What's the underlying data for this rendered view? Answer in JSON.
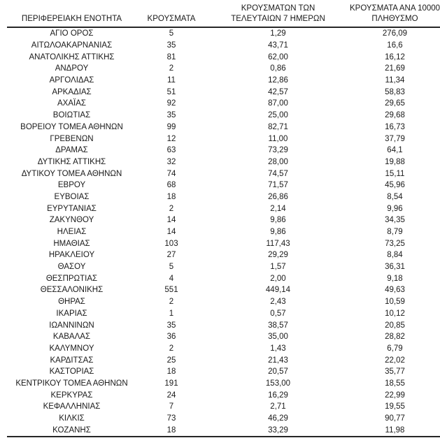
{
  "colors": {
    "text": "#1a1a1a",
    "border": "#262626",
    "background": "#ffffff"
  },
  "header": {
    "col1": "ΠΕΡΙΦΕΡΕΙΑΚΗ ΕΝΟΤΗΤΑ",
    "col2": "ΚΡΟΥΣΜΑΤΑ",
    "col3_line1": "ΚΡΟΥΣΜΑΤΩΝ ΤΩΝ",
    "col3_line2": "ΤΕΛΕΥΤΑΙΩΝ 7 ΗΜΕΡΩΝ",
    "col4_line1": "ΚΡΟΥΣΜΑΤΑ ΑΝΑ 100000",
    "col4_line2": "ΠΛΗΘΥΣΜΟ"
  },
  "chart_data": {
    "type": "table",
    "title": "",
    "columns": [
      "ΠΕΡΙΦΕΡΕΙΑΚΗ ΕΝΟΤΗΤΑ",
      "ΚΡΟΥΣΜΑΤΑ",
      "ΚΡΟΥΣΜΑΤΩΝ ΤΩΝ ΤΕΛΕΥΤΑΙΩΝ 7 ΗΜΕΡΩΝ",
      "ΚΡΟΥΣΜΑΤΑ ΑΝΑ 100000 ΠΛΗΘΥΣΜΟ"
    ],
    "rows": [
      [
        "ΑΓΙΟ ΟΡΟΣ",
        "5",
        "1,29",
        "276,09"
      ],
      [
        "ΑΙΤΩΛΟΑΚΑΡΝΑΝΙΑΣ",
        "35",
        "43,71",
        "16,6"
      ],
      [
        "ΑΝΑΤΟΛΙΚΗΣ ΑΤΤΙΚΗΣ",
        "81",
        "62,00",
        "16,12"
      ],
      [
        "ΑΝΔΡΟΥ",
        "2",
        "0,86",
        "21,69"
      ],
      [
        "ΑΡΓΟΛΙΔΑΣ",
        "11",
        "12,86",
        "11,34"
      ],
      [
        "ΑΡΚΑΔΙΑΣ",
        "51",
        "42,57",
        "58,83"
      ],
      [
        "ΑΧΑΪΑΣ",
        "92",
        "87,00",
        "29,65"
      ],
      [
        "ΒΟΙΩΤΙΑΣ",
        "35",
        "25,00",
        "29,68"
      ],
      [
        "ΒΟΡΕΙΟΥ ΤΟΜΕΑ ΑΘΗΝΩΝ",
        "99",
        "82,71",
        "16,73"
      ],
      [
        "ΓΡΕΒΕΝΩΝ",
        "12",
        "11,00",
        "37,79"
      ],
      [
        "ΔΡΑΜΑΣ",
        "63",
        "73,29",
        "64,1"
      ],
      [
        "ΔΥΤΙΚΗΣ ΑΤΤΙΚΗΣ",
        "32",
        "28,00",
        "19,88"
      ],
      [
        "ΔΥΤΙΚΟΥ ΤΟΜΕΑ ΑΘΗΝΩΝ",
        "74",
        "74,57",
        "15,11"
      ],
      [
        "ΕΒΡΟΥ",
        "68",
        "71,57",
        "45,96"
      ],
      [
        "ΕΥΒΟΙΑΣ",
        "18",
        "26,86",
        "8,54"
      ],
      [
        "ΕΥΡΥΤΑΝΙΑΣ",
        "2",
        "2,14",
        "9,96"
      ],
      [
        "ΖΑΚΥΝΘΟΥ",
        "14",
        "9,86",
        "34,35"
      ],
      [
        "ΗΛΕΙΑΣ",
        "14",
        "9,86",
        "8,79"
      ],
      [
        "ΗΜΑΘΙΑΣ",
        "103",
        "117,43",
        "73,25"
      ],
      [
        "ΗΡΑΚΛΕΙΟΥ",
        "27",
        "29,29",
        "8,84"
      ],
      [
        "ΘΑΣΟΥ",
        "5",
        "1,57",
        "36,31"
      ],
      [
        "ΘΕΣΠΡΩΤΙΑΣ",
        "4",
        "2,00",
        "9,18"
      ],
      [
        "ΘΕΣΣΑΛΟΝΙΚΗΣ",
        "551",
        "449,14",
        "49,63"
      ],
      [
        "ΘΗΡΑΣ",
        "2",
        "2,43",
        "10,59"
      ],
      [
        "ΙΚΑΡΙΑΣ",
        "1",
        "0,57",
        "10,12"
      ],
      [
        "ΙΩΑΝΝΙΝΩΝ",
        "35",
        "38,57",
        "20,85"
      ],
      [
        "ΚΑΒΑΛΑΣ",
        "36",
        "35,00",
        "28,82"
      ],
      [
        "ΚΑΛΥΜΝΟΥ",
        "2",
        "1,43",
        "6,79"
      ],
      [
        "ΚΑΡΔΙΤΣΑΣ",
        "25",
        "21,43",
        "22,02"
      ],
      [
        "ΚΑΣΤΟΡΙΑΣ",
        "18",
        "20,57",
        "35,77"
      ],
      [
        "ΚΕΝΤΡΙΚΟΥ ΤΟΜΕΑ ΑΘΗΝΩΝ",
        "191",
        "153,00",
        "18,55"
      ],
      [
        "ΚΕΡΚΥΡΑΣ",
        "24",
        "16,29",
        "22,99"
      ],
      [
        "ΚΕΦΑΛΛΗΝΙΑΣ",
        "7",
        "2,71",
        "19,55"
      ],
      [
        "ΚΙΛΚΙΣ",
        "73",
        "46,29",
        "90,77"
      ],
      [
        "ΚΟΖΑΝΗΣ",
        "18",
        "33,29",
        "11,98"
      ]
    ]
  }
}
